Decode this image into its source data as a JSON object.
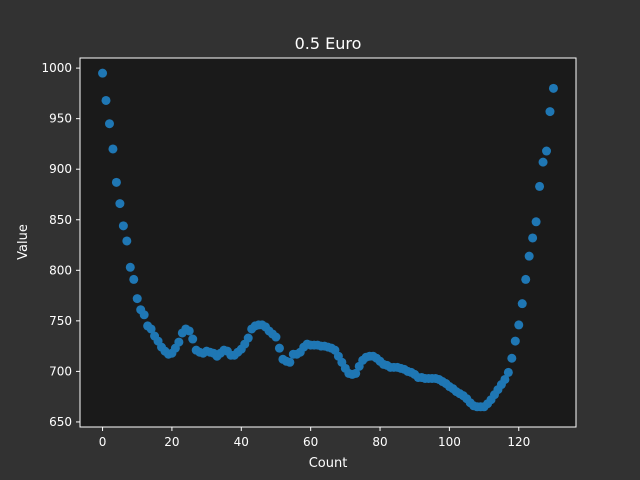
{
  "chart_data": {
    "type": "scatter",
    "title": "0.5 Euro",
    "xlabel": "Count",
    "ylabel": "Value",
    "xlim": [
      -6.5,
      136.5
    ],
    "ylim": [
      645,
      1010
    ],
    "xticks": [
      0,
      20,
      40,
      60,
      80,
      100,
      120
    ],
    "yticks": [
      650,
      700,
      750,
      800,
      850,
      900,
      950,
      1000
    ],
    "grid": false,
    "legend": "none",
    "marker_color": "#1f77b4",
    "series": [
      {
        "x": [
          0,
          1,
          2,
          3,
          4,
          5,
          6,
          7,
          8,
          9,
          10,
          11,
          12,
          13,
          14,
          15,
          16,
          17,
          18,
          19,
          20,
          21,
          22,
          23,
          24,
          25,
          26,
          27,
          28,
          29,
          30,
          31,
          32,
          33,
          34,
          35,
          36,
          37,
          38,
          39,
          40,
          41,
          42,
          43,
          44,
          45,
          46,
          47,
          48,
          49,
          50,
          51,
          52,
          53,
          54,
          55,
          56,
          57,
          58,
          59,
          60,
          61,
          62,
          63,
          64,
          65,
          66,
          67,
          68,
          69,
          70,
          71,
          72,
          73,
          74,
          75,
          76,
          77,
          78,
          79,
          80,
          81,
          82,
          83,
          84,
          85,
          86,
          87,
          88,
          89,
          90,
          91,
          92,
          93,
          94,
          95,
          96,
          97,
          98,
          99,
          100,
          101,
          102,
          103,
          104,
          105,
          106,
          107,
          108,
          109,
          110,
          111,
          112,
          113,
          114,
          115,
          116,
          117,
          118,
          119,
          120,
          121,
          122,
          123,
          124,
          125,
          126,
          127,
          128,
          129,
          130
        ],
        "y": [
          995,
          968,
          945,
          920,
          887,
          866,
          844,
          829,
          803,
          791,
          772,
          761,
          756,
          745,
          742,
          735,
          730,
          724,
          720,
          717,
          718,
          723,
          729,
          738,
          742,
          740,
          732,
          721,
          719,
          718,
          720,
          719,
          718,
          715,
          718,
          721,
          720,
          716,
          716,
          719,
          722,
          727,
          733,
          742,
          745,
          746,
          746,
          744,
          740,
          737,
          734,
          723,
          712,
          710,
          709,
          717,
          717,
          719,
          724,
          727,
          726,
          726,
          726,
          725,
          725,
          724,
          723,
          721,
          715,
          709,
          703,
          698,
          697,
          698,
          705,
          711,
          714,
          715,
          715,
          713,
          710,
          707,
          706,
          704,
          704,
          704,
          703,
          702,
          700,
          699,
          697,
          694,
          694,
          693,
          693,
          693,
          693,
          692,
          690,
          688,
          685,
          683,
          680,
          678,
          676,
          673,
          669,
          666,
          665,
          665,
          665,
          668,
          672,
          677,
          682,
          687,
          692,
          699,
          713,
          730,
          746,
          767,
          791,
          814,
          832,
          848,
          883,
          907,
          918,
          957,
          980
        ]
      }
    ]
  }
}
